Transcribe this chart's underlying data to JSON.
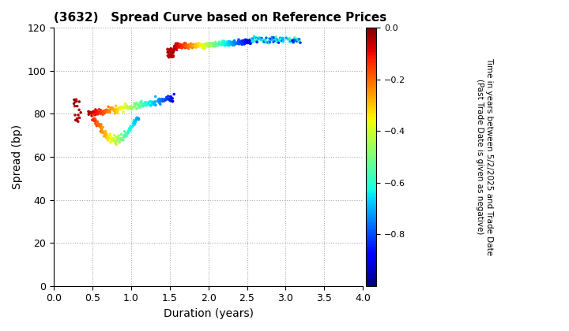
{
  "title": "(3632)   Spread Curve based on Reference Prices",
  "xlabel": "Duration (years)",
  "ylabel": "Spread (bp)",
  "colorbar_label_lines": [
    "Time in years between 5/2/2025 and Trade Date",
    "(Past Trade Date is given as negative)"
  ],
  "xlim": [
    0.0,
    4.0
  ],
  "ylim": [
    0,
    120
  ],
  "xticks": [
    0.0,
    0.5,
    1.0,
    1.5,
    2.0,
    2.5,
    3.0,
    3.5,
    4.0
  ],
  "yticks": [
    0,
    20,
    40,
    60,
    80,
    100,
    120
  ],
  "cmap": "jet",
  "clim": [
    -1.0,
    0.0
  ],
  "cticks": [
    0.0,
    -0.2,
    -0.4,
    -0.6,
    -0.8
  ],
  "background_color": "#ffffff",
  "grid_color": "#aaaaaa",
  "grid_linestyle": "dotted",
  "marker_size": 2.5
}
